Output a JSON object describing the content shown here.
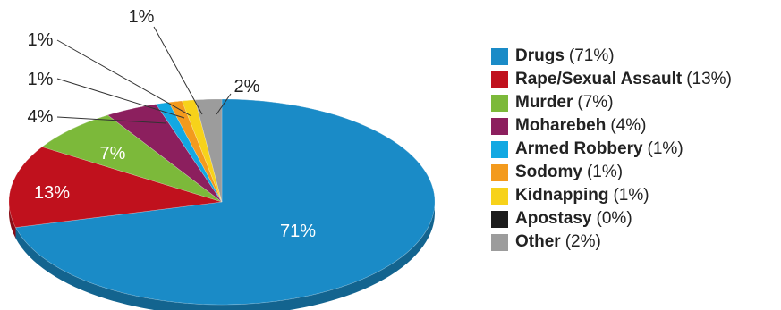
{
  "chart_data": {
    "type": "pie",
    "style": "3d-tilted",
    "slices": [
      {
        "name": "Drugs",
        "value": 71,
        "label": "71%",
        "legend_pct": "(71%)",
        "color": "#1a8bc7"
      },
      {
        "name": "Rape/Sexual Assault",
        "value": 13,
        "label": "13%",
        "legend_pct": "(13%)",
        "color": "#c0111d"
      },
      {
        "name": "Murder",
        "value": 7,
        "label": "7%",
        "legend_pct": "(7%)",
        "color": "#7cb93a"
      },
      {
        "name": "Moharebeh",
        "value": 4,
        "label": "4%",
        "legend_pct": "(4%)",
        "color": "#8c1f5e"
      },
      {
        "name": "Armed Robbery",
        "value": 1,
        "label": "1%",
        "legend_pct": "(1%)",
        "color": "#12a8e2"
      },
      {
        "name": "Sodomy",
        "value": 1,
        "label": "1%",
        "legend_pct": "(1%)",
        "color": "#f39a1d"
      },
      {
        "name": "Kidnapping",
        "value": 1,
        "label": "1%",
        "legend_pct": "(1%)",
        "color": "#f7d21a"
      },
      {
        "name": "Apostasy",
        "value": 0,
        "label": "",
        "legend_pct": "(0%)",
        "color": "#1c1c1c"
      },
      {
        "name": "Other",
        "value": 2,
        "label": "2%",
        "legend_pct": "(2%)",
        "color": "#9c9c9c"
      }
    ],
    "legend_position": "right"
  }
}
